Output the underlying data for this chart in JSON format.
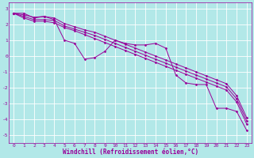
{
  "xlabel": "Windchill (Refroidissement éolien,°C)",
  "ylabel": "",
  "background_color": "#b2e8e8",
  "grid_color": "#ffffff",
  "line_color": "#990099",
  "x": [
    0,
    1,
    2,
    3,
    4,
    5,
    6,
    7,
    8,
    9,
    10,
    11,
    12,
    13,
    14,
    15,
    16,
    17,
    18,
    19,
    20,
    21,
    22,
    23
  ],
  "line1": [
    2.7,
    2.7,
    2.4,
    2.5,
    2.3,
    1.0,
    0.8,
    -0.2,
    -0.1,
    0.3,
    1.0,
    0.8,
    0.7,
    0.7,
    0.8,
    0.5,
    -1.2,
    -1.7,
    -1.8,
    -1.8,
    -3.3,
    -3.3,
    -3.5,
    -4.7
  ],
  "line2": [
    2.7,
    2.4,
    2.2,
    2.2,
    2.1,
    1.8,
    1.6,
    1.35,
    1.1,
    0.85,
    0.6,
    0.35,
    0.1,
    -0.15,
    -0.4,
    -0.65,
    -0.9,
    -1.15,
    -1.4,
    -1.65,
    -1.9,
    -2.15,
    -2.9,
    -4.3
  ],
  "line3": [
    2.7,
    2.5,
    2.3,
    2.3,
    2.25,
    1.9,
    1.7,
    1.5,
    1.3,
    1.05,
    0.8,
    0.55,
    0.3,
    0.05,
    -0.2,
    -0.45,
    -0.7,
    -0.95,
    -1.2,
    -1.45,
    -1.7,
    -1.95,
    -2.7,
    -4.1
  ],
  "line4": [
    2.7,
    2.6,
    2.45,
    2.5,
    2.4,
    2.05,
    1.85,
    1.65,
    1.5,
    1.25,
    1.0,
    0.75,
    0.5,
    0.25,
    0.0,
    -0.25,
    -0.5,
    -0.75,
    -1.0,
    -1.25,
    -1.5,
    -1.75,
    -2.5,
    -3.9
  ],
  "ylim": [
    -5.5,
    3.4
  ],
  "xlim": [
    -0.5,
    23.5
  ],
  "yticks": [
    -5,
    -4,
    -3,
    -2,
    -1,
    0,
    1,
    2,
    3
  ],
  "xticks": [
    0,
    1,
    2,
    3,
    4,
    5,
    6,
    7,
    8,
    9,
    10,
    11,
    12,
    13,
    14,
    15,
    16,
    17,
    18,
    19,
    20,
    21,
    22,
    23
  ],
  "tick_fontsize": 4.5,
  "xlabel_fontsize": 5.5,
  "marker": "D",
  "markersize": 1.5,
  "linewidth": 0.7
}
